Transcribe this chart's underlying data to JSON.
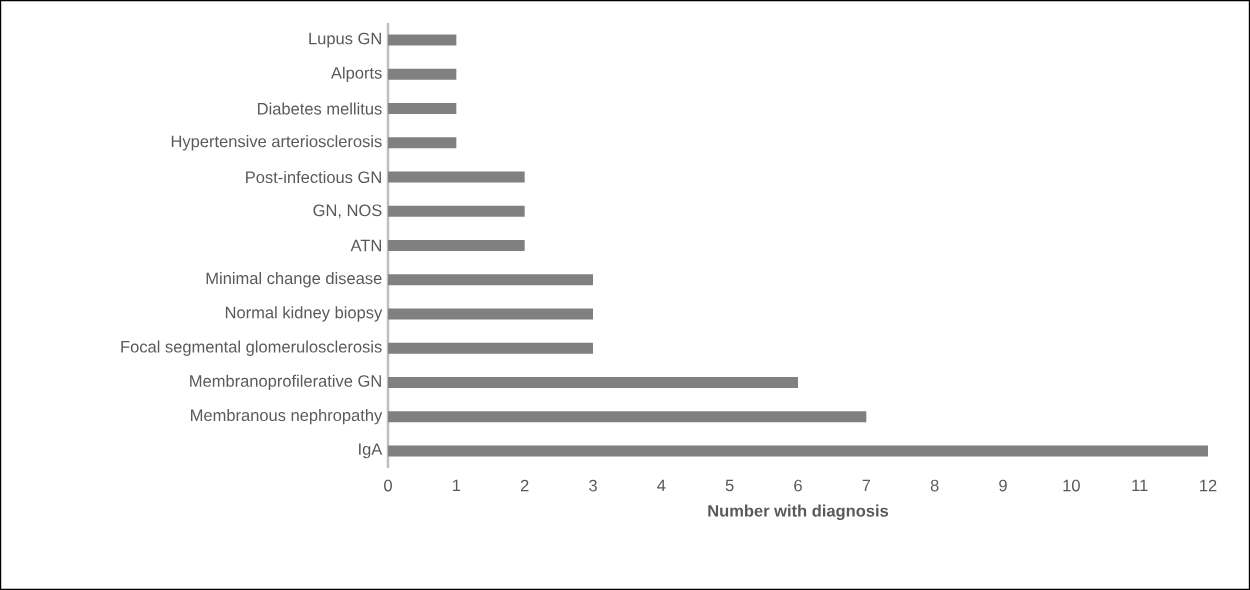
{
  "chart_data": {
    "type": "bar",
    "orientation": "horizontal",
    "xlabel": "Number with diagnosis",
    "categories": [
      "Lupus GN",
      "Alports",
      "Diabetes mellitus",
      "Hypertensive arteriosclerosis",
      "Post-infectious GN",
      "GN, NOS",
      "ATN",
      "Minimal change disease",
      "Normal kidney biopsy",
      "Focal segmental glomerulosclerosis",
      "Membranoprofilerative GN",
      "Membranous nephropathy",
      "IgA"
    ],
    "values": [
      1,
      1,
      1,
      1,
      2,
      2,
      2,
      3,
      3,
      3,
      6,
      7,
      12
    ],
    "color": "#808080",
    "xlim": [
      0,
      12
    ],
    "xticks": [
      0,
      1,
      2,
      3,
      4,
      5,
      6,
      7,
      8,
      9,
      10,
      11,
      12
    ]
  }
}
